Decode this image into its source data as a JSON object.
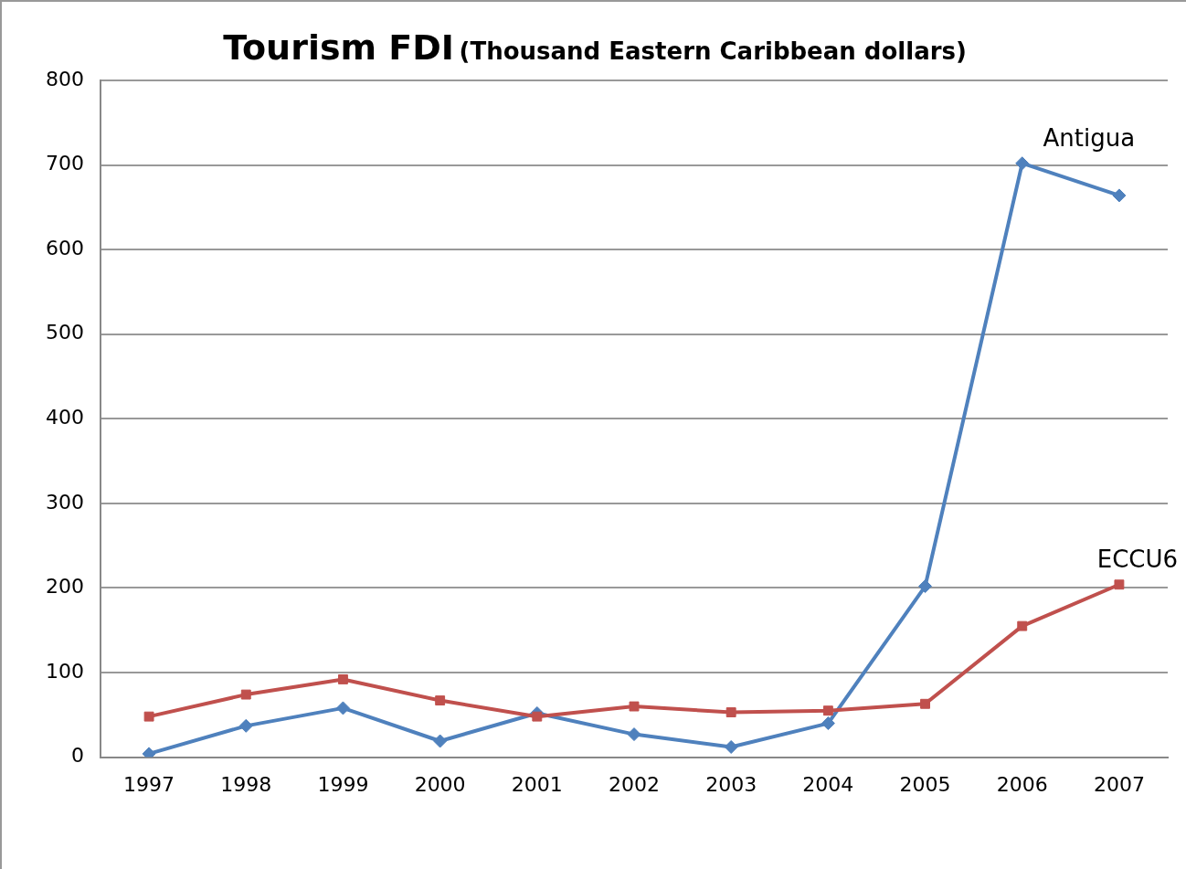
{
  "chart_data": {
    "type": "line",
    "title": "Tourism FDI",
    "subtitle": "(Thousand Eastern Caribbean dollars)",
    "categories": [
      "1997",
      "1998",
      "1999",
      "2000",
      "2001",
      "2002",
      "2003",
      "2004",
      "2005",
      "2006",
      "2007"
    ],
    "series": [
      {
        "name": "Antigua",
        "color": "#4f81bd",
        "marker": "diamond",
        "values": [
          4,
          37,
          58,
          19,
          52,
          27,
          12,
          40,
          202,
          702,
          664
        ]
      },
      {
        "name": "ECCU6",
        "color": "#c0504d",
        "marker": "square",
        "values": [
          48,
          74,
          92,
          67,
          48,
          60,
          53,
          55,
          63,
          155,
          204
        ]
      }
    ],
    "ylim": [
      0,
      800
    ],
    "yticks": [
      0,
      100,
      200,
      300,
      400,
      500,
      600,
      700,
      800
    ],
    "grid": "y",
    "legend": false,
    "line_style": "solid"
  }
}
